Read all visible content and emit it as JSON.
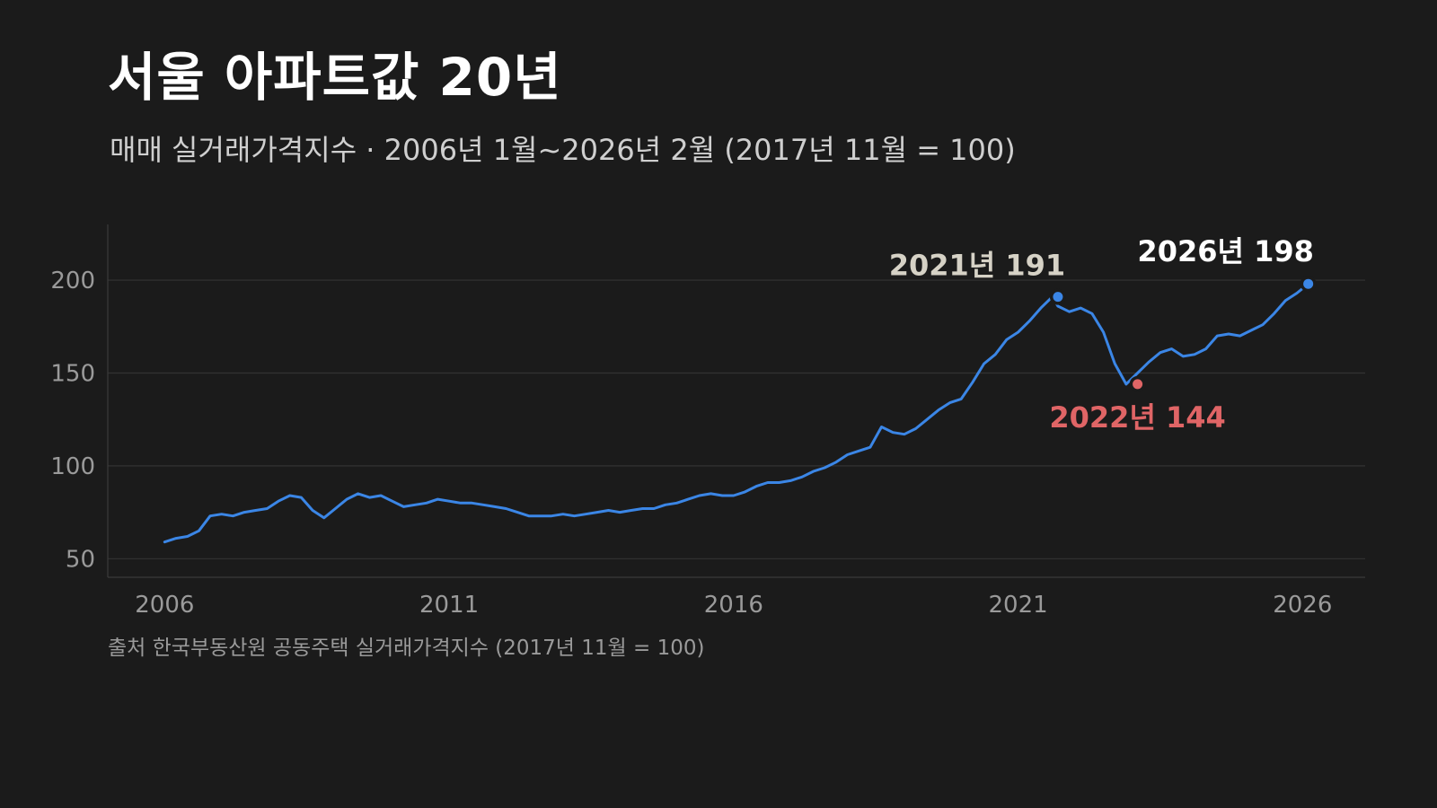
{
  "title": "서울 아파트값 20년",
  "subtitle": "매매 실거래가격지수 · 2006년 1월~2026년 2월 (2017년 11월 = 100)",
  "source": "출처 한국부동산원 공동주택 실거래가격지수 (2017년 11월 = 100)",
  "chart_data": {
    "type": "line",
    "title": "서울 아파트값 20년",
    "subtitle": "매매 실거래가격지수 · 2006년 1월~2026년 2월 (2017년 11월 = 100)",
    "xlabel": "",
    "ylabel": "",
    "xlim": [
      2005.0,
      2027.1
    ],
    "ylim": [
      40,
      230
    ],
    "x_ticks": [
      2006,
      2011,
      2016,
      2021,
      2026
    ],
    "x_tick_labels": [
      "2006",
      "2011",
      "2016",
      "2021",
      "2026"
    ],
    "y_ticks": [
      50,
      100,
      150,
      200
    ],
    "y_tick_labels": [
      "50",
      "100",
      "150",
      "200"
    ],
    "grid": "horizontal",
    "legend": "none",
    "colors": {
      "line": "#3b86e6",
      "peak": "#3b86e6",
      "trough": "#e06566",
      "latest": "#3b86e6",
      "peak_label": "#d6d2c6",
      "trough_label": "#e06566",
      "latest_label": "#ffffff"
    },
    "series": [
      {
        "x": [
          2006.0,
          2006.2,
          2006.4,
          2006.6,
          2006.8,
          2007.0,
          2007.2,
          2007.4,
          2007.6,
          2007.8,
          2008.0,
          2008.2,
          2008.4,
          2008.6,
          2008.8,
          2009.0,
          2009.2,
          2009.4,
          2009.6,
          2009.8,
          2010.0,
          2010.2,
          2010.4,
          2010.6,
          2010.8,
          2011.0,
          2011.2,
          2011.4,
          2011.6,
          2011.8,
          2012.0,
          2012.2,
          2012.4,
          2012.6,
          2012.8,
          2013.0,
          2013.2,
          2013.4,
          2013.6,
          2013.8,
          2014.0,
          2014.2,
          2014.4,
          2014.6,
          2014.8,
          2015.0,
          2015.2,
          2015.4,
          2015.6,
          2015.8,
          2016.0,
          2016.2,
          2016.4,
          2016.6,
          2016.8,
          2017.0,
          2017.2,
          2017.4,
          2017.6,
          2017.8,
          2018.0,
          2018.2,
          2018.4,
          2018.6,
          2018.8,
          2019.0,
          2019.2,
          2019.4,
          2019.6,
          2019.8,
          2020.0,
          2020.2,
          2020.4,
          2020.6,
          2020.8,
          2021.0,
          2021.2,
          2021.4,
          2021.6,
          2021.7,
          2021.9,
          2022.1,
          2022.3,
          2022.5,
          2022.7,
          2022.9,
          2023.1,
          2023.3,
          2023.5,
          2023.7,
          2023.9,
          2024.1,
          2024.3,
          2024.5,
          2024.7,
          2024.9,
          2025.1,
          2025.3,
          2025.5,
          2025.7,
          2025.9,
          2026.1
        ],
        "values": [
          59,
          61,
          62,
          65,
          73,
          74,
          73,
          75,
          76,
          77,
          81,
          84,
          83,
          76,
          72,
          77,
          82,
          85,
          83,
          84,
          81,
          78,
          79,
          80,
          82,
          81,
          80,
          80,
          79,
          78,
          77,
          75,
          73,
          73,
          73,
          74,
          73,
          74,
          75,
          76,
          75,
          76,
          77,
          77,
          79,
          80,
          82,
          84,
          85,
          84,
          84,
          86,
          89,
          91,
          91,
          92,
          94,
          97,
          99,
          102,
          106,
          108,
          110,
          121,
          118,
          117,
          120,
          125,
          130,
          134,
          136,
          145,
          155,
          160,
          168,
          172,
          178,
          185,
          191,
          186,
          183,
          185,
          182,
          172,
          155,
          144,
          150,
          156,
          161,
          163,
          159,
          160,
          163,
          170,
          171,
          170,
          173,
          176,
          182,
          189,
          193,
          198
        ]
      }
    ],
    "annotations": [
      {
        "label": "2021년 191",
        "x": 2021.7,
        "y": 191,
        "role": "peak"
      },
      {
        "label": "2022년 144",
        "x": 2023.1,
        "y": 144,
        "role": "trough"
      },
      {
        "label": "2026년 198",
        "x": 2026.1,
        "y": 198,
        "role": "latest"
      }
    ]
  }
}
